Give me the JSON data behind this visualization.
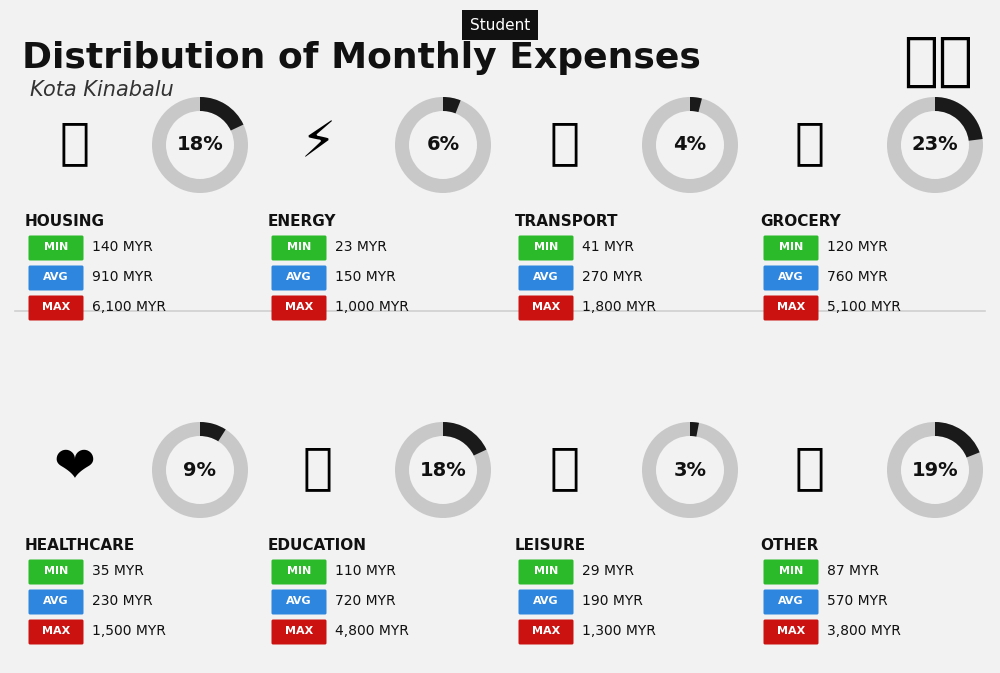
{
  "bg_color": "#f2f2f2",
  "title_label": "Student",
  "title": "Distribution of Monthly Expenses",
  "subtitle": "Kota Kinabalu",
  "categories": [
    {
      "name": "HOUSING",
      "pct": 18,
      "min": "140 MYR",
      "avg": "910 MYR",
      "max": "6,100 MYR",
      "row": 0,
      "col": 0
    },
    {
      "name": "ENERGY",
      "pct": 6,
      "min": "23 MYR",
      "avg": "150 MYR",
      "max": "1,000 MYR",
      "row": 0,
      "col": 1
    },
    {
      "name": "TRANSPORT",
      "pct": 4,
      "min": "41 MYR",
      "avg": "270 MYR",
      "max": "1,800 MYR",
      "row": 0,
      "col": 2
    },
    {
      "name": "GROCERY",
      "pct": 23,
      "min": "120 MYR",
      "avg": "760 MYR",
      "max": "5,100 MYR",
      "row": 0,
      "col": 3
    },
    {
      "name": "HEALTHCARE",
      "pct": 9,
      "min": "35 MYR",
      "avg": "230 MYR",
      "max": "1,500 MYR",
      "row": 1,
      "col": 0
    },
    {
      "name": "EDUCATION",
      "pct": 18,
      "min": "110 MYR",
      "avg": "720 MYR",
      "max": "4,800 MYR",
      "row": 1,
      "col": 1
    },
    {
      "name": "LEISURE",
      "pct": 3,
      "min": "29 MYR",
      "avg": "190 MYR",
      "max": "1,300 MYR",
      "row": 1,
      "col": 2
    },
    {
      "name": "OTHER",
      "pct": 19,
      "min": "87 MYR",
      "avg": "570 MYR",
      "max": "3,800 MYR",
      "row": 1,
      "col": 3
    }
  ],
  "min_color": "#2aba2a",
  "avg_color": "#2e86de",
  "max_color": "#cc1111",
  "donut_filled_color": "#1a1a1a",
  "donut_empty_color": "#c8c8c8",
  "icon_emojis": {
    "HOUSING": "🏙",
    "ENERGY": "⚡",
    "TRANSPORT": "🚌",
    "GROCERY": "🛒",
    "HEALTHCARE": "❤️",
    "EDUCATION": "🎓",
    "LEISURE": "🛍️",
    "OTHER": "💰"
  }
}
